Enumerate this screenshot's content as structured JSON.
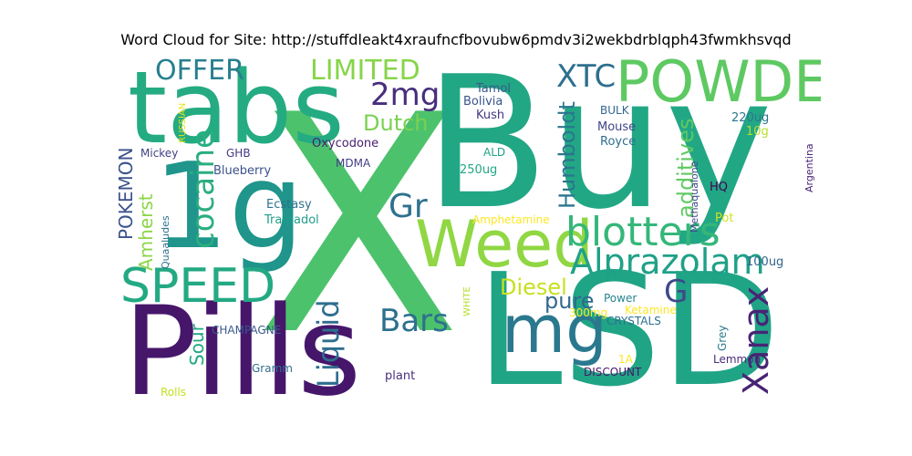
{
  "title": "Word Cloud for Site: http://stuffdleakt4xraufncfbovubw6pmdv3i2wekbdrblqph43fwmkhsvqd",
  "words": [
    {
      "text": "X",
      "color": "#4cc26c"
    },
    {
      "text": "Buy",
      "color": "#22a785"
    },
    {
      "text": "LSD",
      "color": "#20a486"
    },
    {
      "text": "Pills",
      "color": "#46166b"
    },
    {
      "text": "tabs",
      "color": "#25ab82"
    },
    {
      "text": "1g",
      "color": "#1f958b"
    },
    {
      "text": "Weed",
      "color": "#90d743"
    },
    {
      "text": "POWDER",
      "color": "#5ec962"
    },
    {
      "text": "mg",
      "color": "#2a788e"
    },
    {
      "text": "SPEED",
      "color": "#23a983"
    },
    {
      "text": "blotters",
      "color": "#35b779"
    },
    {
      "text": "Alprazolam",
      "color": "#1fa187"
    },
    {
      "text": "Xanax",
      "color": "#482475"
    },
    {
      "text": "cocaine",
      "color": "#29af7f"
    },
    {
      "text": "Liquid",
      "color": "#2e6e8e"
    },
    {
      "text": "Bars",
      "color": "#2d708e"
    },
    {
      "text": "Gr",
      "color": "#2c728e"
    },
    {
      "text": "LIMITED",
      "color": "#86d549"
    },
    {
      "text": "OFFER",
      "color": "#277f8e"
    },
    {
      "text": "XTC",
      "color": "#2e6f8e"
    },
    {
      "text": "2mg",
      "color": "#472e7c"
    },
    {
      "text": "Dutch",
      "color": "#7ad151"
    },
    {
      "text": "Humboldt",
      "color": "#2a768e"
    },
    {
      "text": "additives",
      "color": "#5ec962"
    },
    {
      "text": "Diesel",
      "color": "#c8e020"
    },
    {
      "text": "pure",
      "color": "#31688e"
    },
    {
      "text": "G",
      "color": "#3e4989"
    },
    {
      "text": "Sour",
      "color": "#22a884"
    },
    {
      "text": "Amherst",
      "color": "#8bd646"
    },
    {
      "text": "POKEMON",
      "color": "#3b528b"
    },
    {
      "text": "Tamol",
      "color": "#38598c"
    },
    {
      "text": "Bolivia",
      "color": "#3a548c"
    },
    {
      "text": "Kush",
      "color": "#453781"
    },
    {
      "text": "BULK",
      "color": "#31688e"
    },
    {
      "text": "Mouse",
      "color": "#3f4788"
    },
    {
      "text": "Royce",
      "color": "#2e6e8e"
    },
    {
      "text": "Oxycodone",
      "color": "#482071"
    },
    {
      "text": "MDMA",
      "color": "#433e85"
    },
    {
      "text": "ALD",
      "color": "#1fa188"
    },
    {
      "text": "250ug",
      "color": "#22a785"
    },
    {
      "text": "Mickey",
      "color": "#424086"
    },
    {
      "text": "GHB",
      "color": "#443983"
    },
    {
      "text": "Blueberry",
      "color": "#3b518b"
    },
    {
      "text": "Ecstasy",
      "color": "#2d718e"
    },
    {
      "text": "Tramadol",
      "color": "#1f9e89"
    },
    {
      "text": "Amphetamine",
      "color": "#fde725"
    },
    {
      "text": "220ug",
      "color": "#2a788e"
    },
    {
      "text": "10g",
      "color": "#b5de2b"
    },
    {
      "text": "HQ",
      "color": "#440154"
    },
    {
      "text": "Pot",
      "color": "#d2e21b"
    },
    {
      "text": "Methaqualone",
      "color": "#3f4788"
    },
    {
      "text": "Argentina",
      "color": "#482475"
    },
    {
      "text": "100ug",
      "color": "#32648e"
    },
    {
      "text": "Quaaludes",
      "color": "#2c728e"
    },
    {
      "text": "RUSSIAN",
      "color": "#e5e419"
    },
    {
      "text": "WHITE",
      "color": "#b5de2b"
    },
    {
      "text": "CHAMPAGNE",
      "color": "#38598c"
    },
    {
      "text": "Gramm",
      "color": "#2e6f8e"
    },
    {
      "text": "plant",
      "color": "#46327e"
    },
    {
      "text": "Rolls",
      "color": "#c5e021"
    },
    {
      "text": "Power",
      "color": "#25848e"
    },
    {
      "text": "300mg",
      "color": "#fde725"
    },
    {
      "text": "Ketamine",
      "color": "#fde725"
    },
    {
      "text": "CRYSTALS",
      "color": "#2c728e"
    },
    {
      "text": "1A",
      "color": "#fde725"
    },
    {
      "text": "DISCOUNT",
      "color": "#481467"
    },
    {
      "text": "Grey",
      "color": "#2a788e"
    },
    {
      "text": "Lemmon",
      "color": "#472c7a"
    }
  ]
}
